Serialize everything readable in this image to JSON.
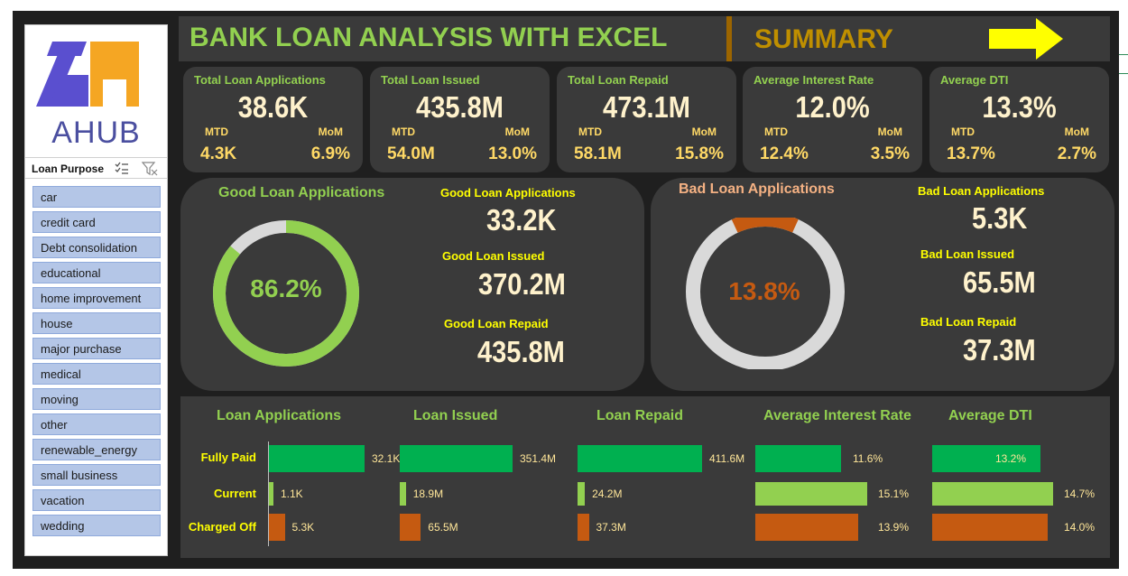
{
  "header": {
    "title": "BANK LOAN ANALYSIS WITH EXCEL",
    "summary_label": "SUMMARY"
  },
  "colors": {
    "accent_green": "#92d050",
    "bar_green": "#00b050",
    "bar_lime": "#92d050",
    "bar_orange": "#c55a11",
    "title_gold": "#bf8f00",
    "label_yellow": "#ffff00",
    "arrow_yellow": "#ffff00",
    "logo_purple": "#4b4fa0",
    "logo_orange": "#f5a623"
  },
  "logo": {
    "text": "AHUB"
  },
  "slicer": {
    "title": "Loan Purpose",
    "items": [
      "car",
      "credit card",
      "Debt consolidation",
      "educational",
      "home improvement",
      "house",
      "major purchase",
      "medical",
      "moving",
      "other",
      "renewable_energy",
      "small business",
      "vacation",
      "wedding"
    ]
  },
  "kpis": [
    {
      "label": "Total Loan Applications",
      "value": "38.6K",
      "mtd_label": "MTD",
      "mom_label": "MoM",
      "mtd": "4.3K",
      "mom": "6.9%"
    },
    {
      "label": "Total Loan Issued",
      "value": "435.8M",
      "mtd_label": "MTD",
      "mom_label": "MoM",
      "mtd": "54.0M",
      "mom": "13.0%"
    },
    {
      "label": "Total Loan Repaid",
      "value": "473.1M",
      "mtd_label": "MTD",
      "mom_label": "MoM",
      "mtd": "58.1M",
      "mom": "15.8%"
    },
    {
      "label": "Average Interest Rate",
      "value": "12.0%",
      "mtd_label": "MTD",
      "mom_label": "MoM",
      "mtd": "12.4%",
      "mom": "3.5%"
    },
    {
      "label": "Average DTI",
      "value": "13.3%",
      "mtd_label": "MTD",
      "mom_label": "MoM",
      "mtd": "13.7%",
      "mom": "2.7%"
    }
  ],
  "good": {
    "title": "Good Loan Applications",
    "percent_label": "86.2%",
    "percent": 86.2,
    "apps_label": "Good Loan Applications",
    "apps_value": "33.2K",
    "issued_label": "Good Loan Issued",
    "issued_value": "370.2M",
    "repaid_label": "Good Loan Repaid",
    "repaid_value": "435.8M"
  },
  "bad": {
    "title": "Bad Loan Applications",
    "percent_label": "13.8%",
    "percent": 13.8,
    "apps_label": "Bad Loan Applications",
    "apps_value": "5.3K",
    "issued_label": "Bad Loan Issued",
    "issued_value": "65.5M",
    "repaid_label": "Bad Loan Repaid",
    "repaid_value": "37.3M"
  },
  "chart_data": {
    "type": "bar",
    "categories": [
      "Fully Paid",
      "Current",
      "Charged Off"
    ],
    "series": [
      {
        "name": "Loan Applications",
        "values": [
          32.1,
          1.1,
          5.3
        ],
        "labels": [
          "32.1K",
          "1.1K",
          "5.3K"
        ]
      },
      {
        "name": "Loan Issued",
        "values": [
          351.4,
          18.9,
          65.5
        ],
        "labels": [
          "351.4M",
          "18.9M",
          "65.5M"
        ]
      },
      {
        "name": "Loan Repaid",
        "values": [
          411.6,
          24.2,
          37.3
        ],
        "labels": [
          "411.6M",
          "24.2M",
          "37.3M"
        ]
      },
      {
        "name": "Average Interest Rate",
        "values": [
          11.6,
          15.1,
          13.9
        ],
        "labels": [
          "11.6%",
          "15.1%",
          "13.9%"
        ]
      },
      {
        "name": "Average DTI",
        "values": [
          13.2,
          14.7,
          14.0
        ],
        "labels": [
          "13.2%",
          "14.7%",
          "14.0%"
        ]
      }
    ]
  }
}
